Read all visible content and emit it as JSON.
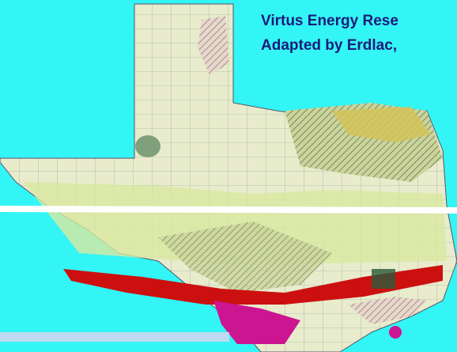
{
  "title": {
    "line1": "Virtus Energy Rese",
    "line2": "Adapted by Erdlac,"
  }
}
